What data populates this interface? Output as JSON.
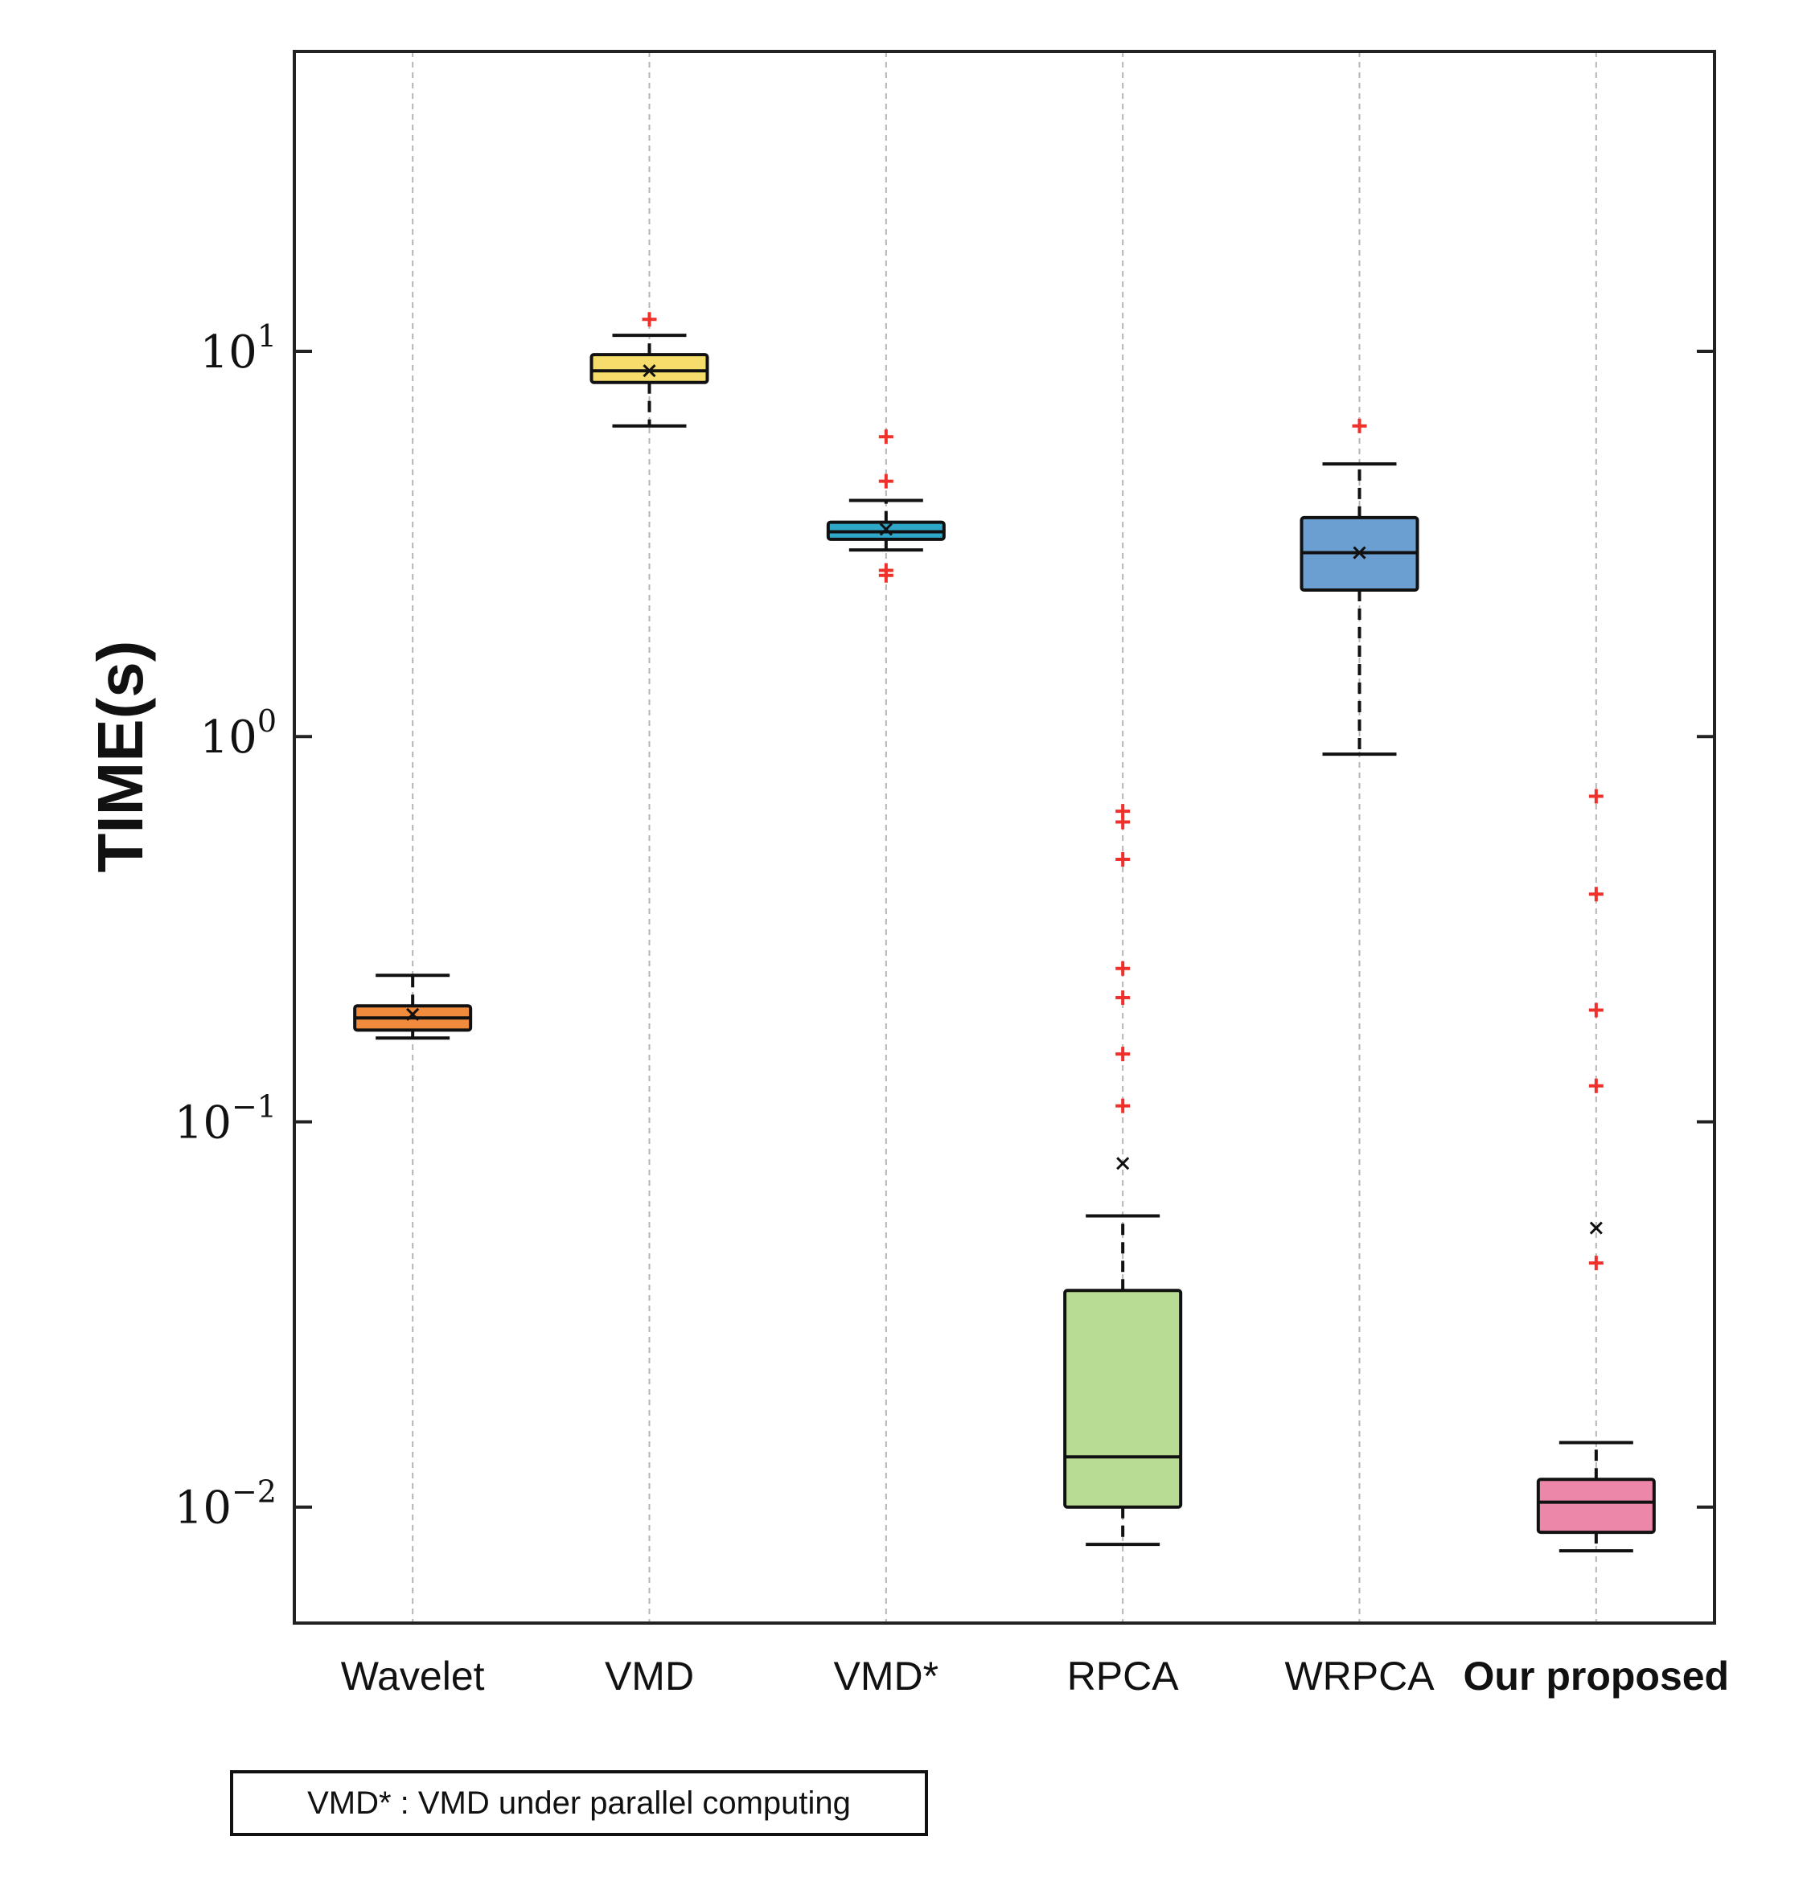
{
  "chart_data": {
    "type": "box",
    "title": "",
    "xlabel": "",
    "ylabel": "TIME(s)",
    "yscale": "log",
    "ylim": [
      0.005,
      60
    ],
    "yticks": [
      {
        "value": 10,
        "label_base": "10",
        "label_exp": "1"
      },
      {
        "value": 1,
        "label_base": "10",
        "label_exp": "0"
      },
      {
        "value": 0.1,
        "label_base": "10",
        "label_exp": "−1"
      },
      {
        "value": 0.01,
        "label_base": "10",
        "label_exp": "−2"
      }
    ],
    "grid": "vertical-dashed",
    "mean_marker": "x",
    "outlier_marker": "+",
    "categories": [
      {
        "name": "Wavelet",
        "bold": false,
        "color": "#F08A3C",
        "whisker_low": 0.165,
        "q1": 0.173,
        "median": 0.186,
        "q3": 0.2,
        "whisker_high": 0.24,
        "mean": 0.19,
        "outliers": []
      },
      {
        "name": "VMD",
        "bold": false,
        "color": "#F5DC6B",
        "whisker_low": 6.4,
        "q1": 8.3,
        "median": 8.9,
        "q3": 9.8,
        "whisker_high": 11.0,
        "mean": 8.9,
        "outliers": [
          12.1
        ]
      },
      {
        "name": "VMD*",
        "bold": false,
        "color": "#2EA7C9",
        "whisker_low": 3.05,
        "q1": 3.25,
        "median": 3.4,
        "q3": 3.6,
        "whisker_high": 4.1,
        "mean": 3.45,
        "outliers": [
          6.0,
          4.6,
          2.7,
          2.62
        ]
      },
      {
        "name": "RPCA",
        "bold": false,
        "color": "#B8DC93",
        "whisker_low": 0.008,
        "q1": 0.01,
        "median": 0.0135,
        "q3": 0.0365,
        "whisker_high": 0.057,
        "mean": 0.078,
        "outliers": [
          0.64,
          0.6,
          0.48,
          0.25,
          0.21,
          0.15,
          0.11
        ]
      },
      {
        "name": "WRPCA",
        "bold": false,
        "color": "#6B9FD1",
        "whisker_low": 0.9,
        "q1": 2.4,
        "median": 3.0,
        "q3": 3.7,
        "whisker_high": 5.1,
        "mean": 3.0,
        "outliers": [
          6.4
        ]
      },
      {
        "name": "Our proposed",
        "bold": true,
        "color": "#EC87AA",
        "whisker_low": 0.0077,
        "q1": 0.0086,
        "median": 0.0103,
        "q3": 0.0118,
        "whisker_high": 0.0147,
        "mean": 0.053,
        "outliers": [
          0.7,
          0.39,
          0.195,
          0.124,
          0.043
        ]
      }
    ]
  },
  "note": "VMD* : VMD under parallel computing"
}
